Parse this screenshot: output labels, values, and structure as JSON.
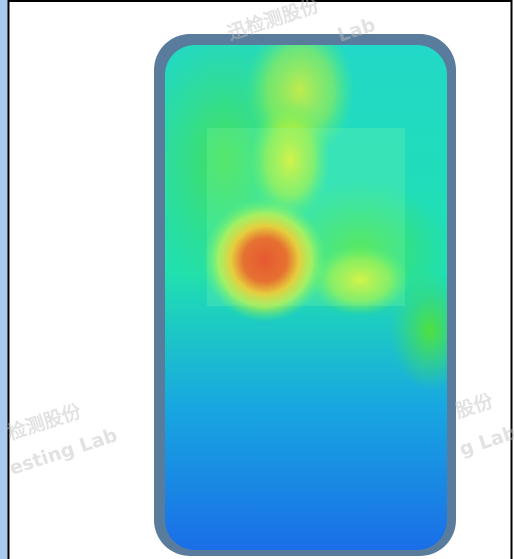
{
  "watermarks": [
    {
      "line1": "迅检测股份",
      "line2": "Lab"
    },
    {
      "line1": "检测股份",
      "line2": "esting Lab"
    },
    {
      "line1": "股份",
      "line2": "g Lab"
    }
  ]
}
